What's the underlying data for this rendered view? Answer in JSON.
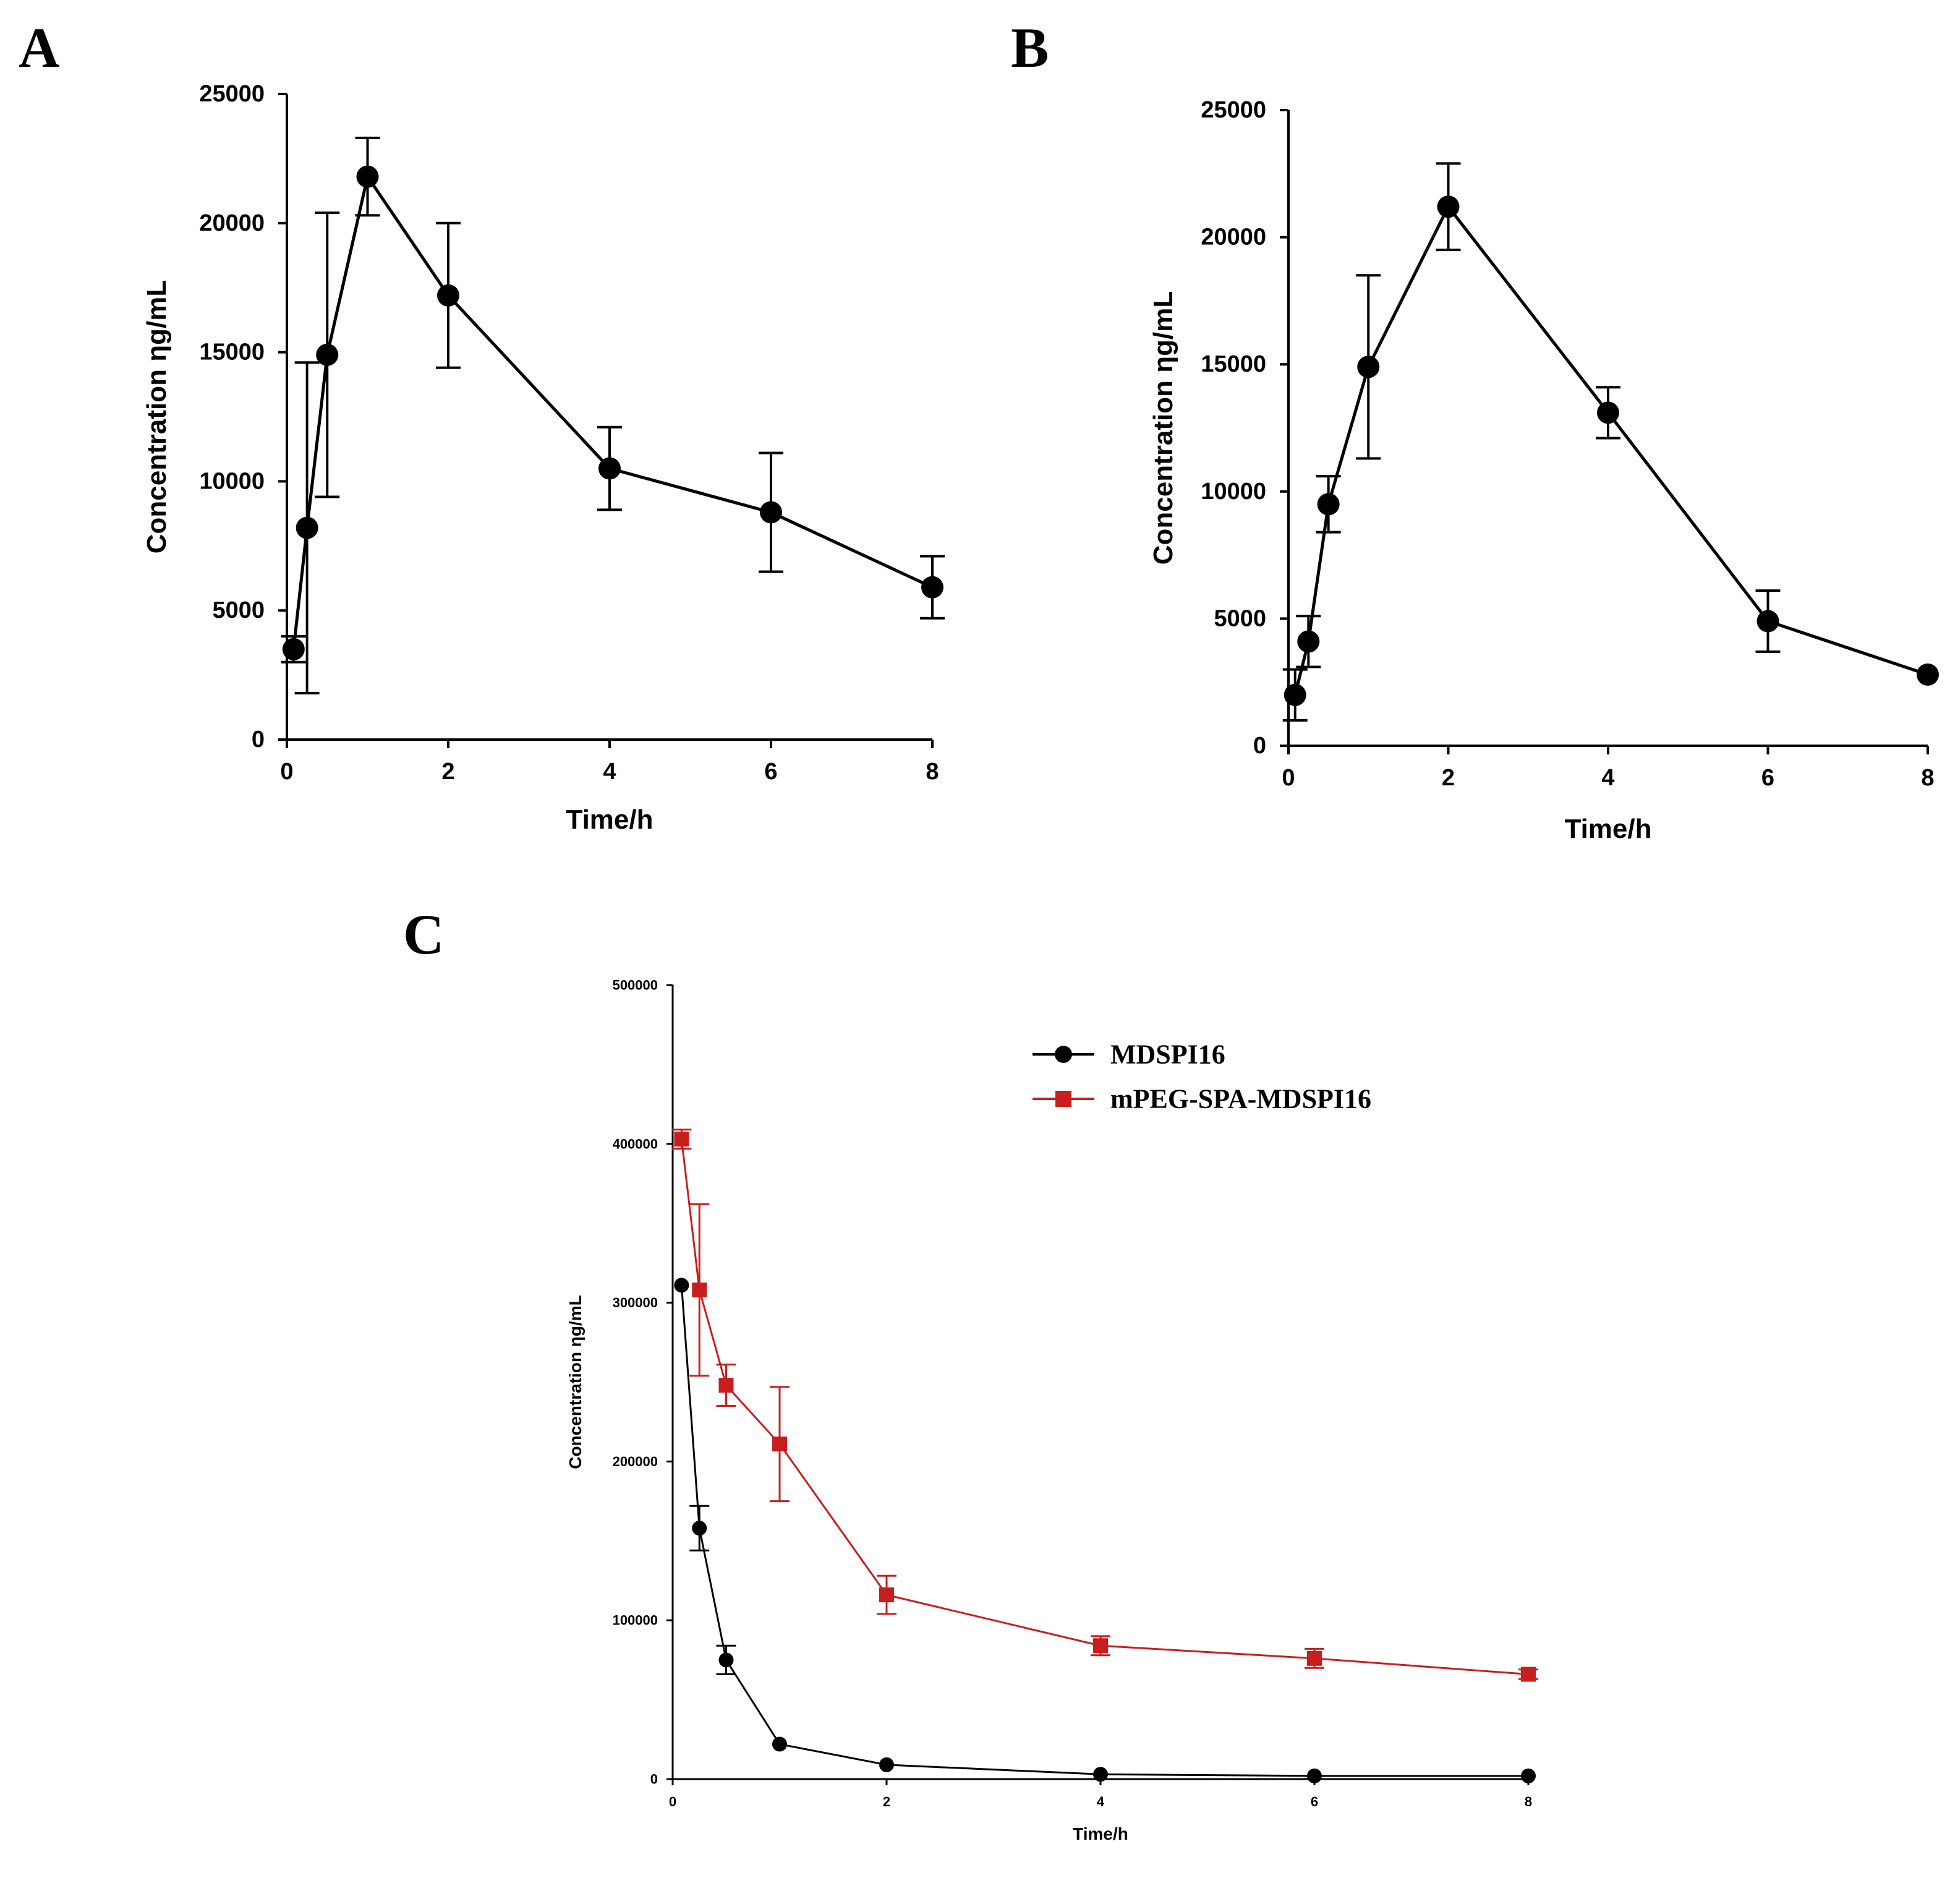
{
  "chart_data": [
    {
      "panel": "A",
      "type": "line",
      "xlabel": "Time/h",
      "ylabel": "Concentration ηg/mL",
      "xlim": [
        0,
        8
      ],
      "ylim": [
        0,
        25000
      ],
      "xticks": [
        0,
        2,
        4,
        6,
        8
      ],
      "yticks": [
        0,
        5000,
        10000,
        15000,
        20000,
        25000
      ],
      "series": [
        {
          "name": "A",
          "color": "#000000",
          "marker": "circle",
          "x": [
            0.083,
            0.25,
            0.5,
            1,
            2,
            4,
            6,
            8
          ],
          "values": [
            3500,
            8200,
            14900,
            21800,
            17200,
            10500,
            8800,
            5900
          ],
          "errors": [
            500,
            6400,
            5500,
            1500,
            2800,
            1600,
            2300,
            1200
          ]
        }
      ]
    },
    {
      "panel": "B",
      "type": "line",
      "xlabel": "Time/h",
      "ylabel": "Concentration ηg/mL",
      "xlim": [
        0,
        8
      ],
      "ylim": [
        0,
        25000
      ],
      "xticks": [
        0,
        2,
        4,
        6,
        8
      ],
      "yticks": [
        0,
        5000,
        10000,
        15000,
        20000,
        25000
      ],
      "series": [
        {
          "name": "B",
          "color": "#000000",
          "marker": "circle",
          "x": [
            0.083,
            0.25,
            0.5,
            1,
            2,
            4,
            6,
            8
          ],
          "values": [
            2000,
            4100,
            9500,
            14900,
            21200,
            13100,
            4900,
            2800
          ],
          "errors": [
            1000,
            1000,
            1100,
            3600,
            1700,
            1000,
            1200,
            0
          ]
        }
      ]
    },
    {
      "panel": "C",
      "type": "line",
      "xlabel": "Time/h",
      "ylabel": "Concentration ηg/mL",
      "xlim": [
        0,
        8
      ],
      "ylim": [
        0,
        500000
      ],
      "xticks": [
        0,
        2,
        4,
        6,
        8
      ],
      "yticks": [
        0,
        100000,
        200000,
        300000,
        400000,
        500000
      ],
      "legend_position": "top-right",
      "series": [
        {
          "name": "MDSPI16",
          "color": "#000000",
          "marker": "circle",
          "x": [
            0.083,
            0.25,
            0.5,
            1,
            2,
            4,
            6,
            8
          ],
          "values": [
            311000,
            158000,
            75000,
            22000,
            9000,
            3000,
            2000,
            2000
          ],
          "errors": [
            0,
            14000,
            9000,
            0,
            0,
            0,
            0,
            0
          ]
        },
        {
          "name": "mPEG-SPA-MDSPI16",
          "color": "#c81e1e",
          "marker": "square",
          "x": [
            0.083,
            0.25,
            0.5,
            1,
            2,
            4,
            6,
            8
          ],
          "values": [
            403000,
            308000,
            248000,
            211000,
            116000,
            84000,
            76000,
            66000
          ],
          "errors": [
            6000,
            54000,
            13000,
            36000,
            12000,
            6000,
            6000,
            3000
          ]
        }
      ]
    }
  ]
}
